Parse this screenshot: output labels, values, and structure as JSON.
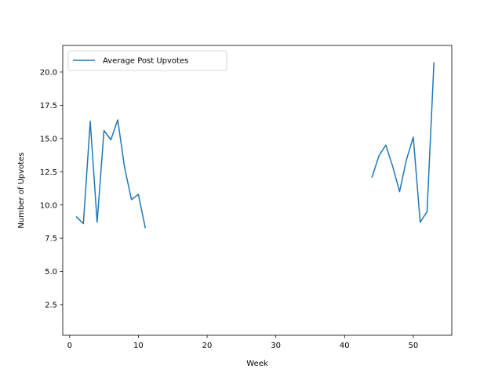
{
  "chart_data": {
    "type": "line",
    "title": "",
    "xlabel": "Week",
    "ylabel": "Number of Upvotes",
    "xlim": [
      -1,
      55.6
    ],
    "ylim": [
      0.2,
      22.0
    ],
    "xticks": [
      0,
      10,
      20,
      30,
      40,
      50
    ],
    "yticks": [
      2.5,
      5.0,
      7.5,
      10.0,
      12.5,
      15.0,
      17.5,
      20.0
    ],
    "xtick_labels": [
      "0",
      "10",
      "20",
      "30",
      "40",
      "50"
    ],
    "ytick_labels": [
      "2.5",
      "5.0",
      "7.5",
      "10.0",
      "12.5",
      "15.0",
      "17.5",
      "20.0"
    ],
    "grid": false,
    "legend_position": "top-left",
    "series": [
      {
        "name": "Average Post Upvotes",
        "color": "#1f77b4",
        "segments": [
          {
            "x": [
              1,
              2,
              3,
              4,
              5,
              6,
              7,
              8,
              9,
              10,
              11
            ],
            "y": [
              9.1,
              8.6,
              16.3,
              8.7,
              15.6,
              14.9,
              16.4,
              12.8,
              10.4,
              10.8,
              8.3
            ]
          },
          {
            "x": [
              44,
              45,
              46,
              47,
              48,
              49,
              50,
              51,
              52,
              53
            ],
            "y": [
              12.1,
              13.7,
              14.5,
              12.9,
              11.0,
              13.4,
              15.1,
              8.7,
              9.5,
              20.7
            ]
          }
        ]
      }
    ]
  }
}
